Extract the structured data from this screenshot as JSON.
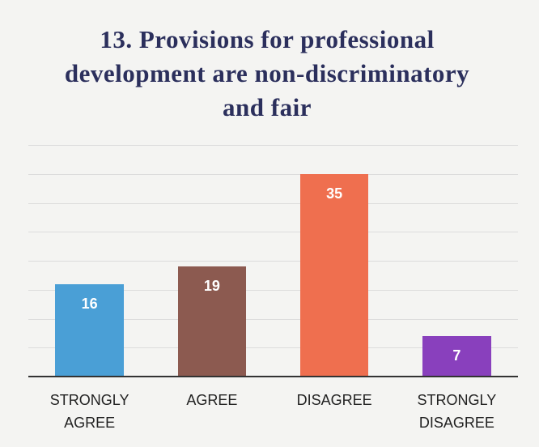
{
  "chart_data": {
    "type": "bar",
    "title": "13. Provisions for professional development are non-discriminatory and fair",
    "categories": [
      "STRONGLY AGREE",
      "AGREE",
      "DISAGREE",
      "STRONGLY DISAGREE"
    ],
    "values": [
      16,
      19,
      35,
      7
    ],
    "colors": [
      "#4a9fd6",
      "#8c5a50",
      "#ef6f4f",
      "#8940bd"
    ],
    "ylim": [
      0,
      40
    ],
    "yticks": [
      0,
      5,
      10,
      15,
      20,
      25,
      30,
      35,
      40
    ],
    "grid": true
  }
}
